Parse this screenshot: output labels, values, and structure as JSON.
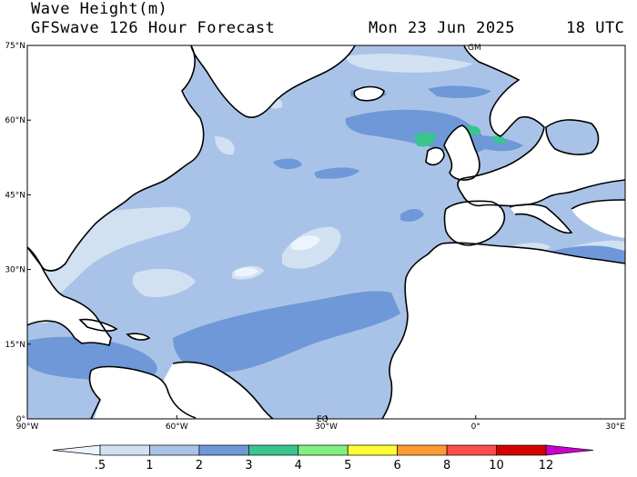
{
  "title": "Wave Height(m)",
  "subtitle": "GFSwave 126 Hour Forecast",
  "date": "Mon 23 Jun 2025",
  "time": "18 UTC",
  "map_labels": {
    "gm": "GM",
    "eq": "EQ"
  },
  "lat_labels": [
    "75°N",
    "60°N",
    "45°N",
    "30°N",
    "15°N",
    "0°"
  ],
  "lon_labels": [
    "90°W",
    "60°W",
    "30°W",
    "0°",
    "30°E"
  ],
  "colorbar": {
    "labels": [
      ".5",
      "1",
      "2",
      "3",
      "4",
      "5",
      "6",
      "8",
      "10",
      "12"
    ],
    "colors": [
      "#eef4fb",
      "#d2e1f2",
      "#a9c3e8",
      "#6f98d8",
      "#39c490",
      "#7ff07f",
      "#ffff33",
      "#ff9933",
      "#ff4c4c",
      "#d40000",
      "#cc00cc"
    ]
  },
  "colors": {
    "land": "#ffffff",
    "coast": "#000000",
    "sea_1_2": "#a9c3e8",
    "sea_2_3": "#6f98d8",
    "sea_05_1": "#d2e1f2",
    "sea_lt_05": "#eef4fb",
    "sea_3_4": "#39c490"
  }
}
